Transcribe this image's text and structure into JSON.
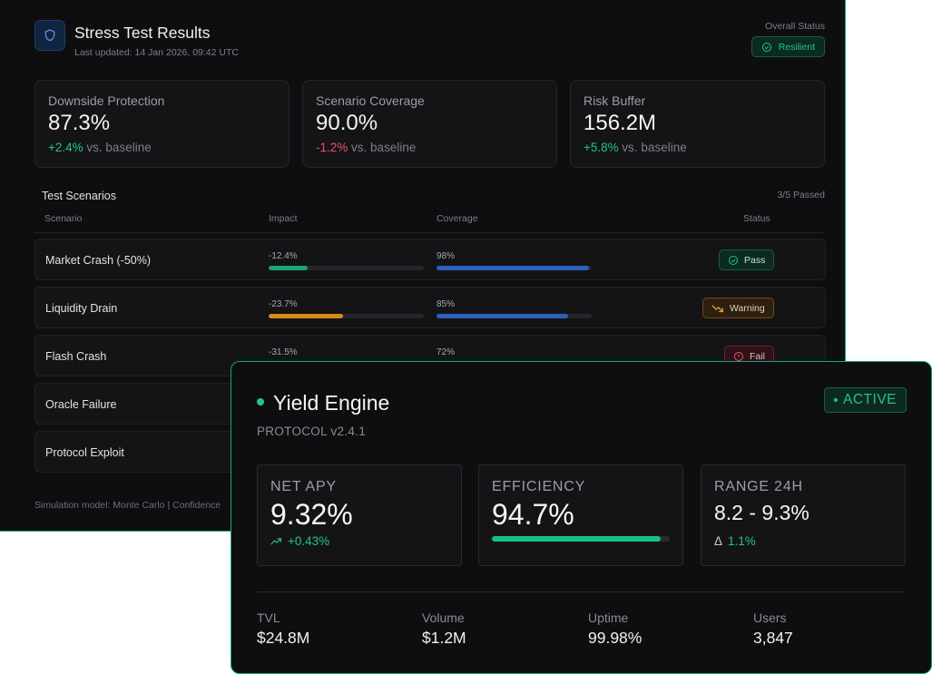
{
  "stress": {
    "title": "Stress Test Results",
    "updated": "Last updated: 14 Jan 2026, 09:42 UTC",
    "overall_label": "Overall Status",
    "overall_status": "Resilient",
    "cards": [
      {
        "label": "Downside Protection",
        "value": "87.3%",
        "change": "+2.4%",
        "change_suffix": "vs. baseline"
      },
      {
        "label": "Scenario Coverage",
        "value": "90.0%",
        "change": "-1.2%",
        "change_suffix": "vs. baseline"
      },
      {
        "label": "Risk Buffer",
        "value": "156.2M",
        "change": "+5.8%",
        "change_suffix": "vs. baseline"
      }
    ],
    "section_title": "Test Scenarios",
    "passed_count": "3/5 Passed",
    "columns": [
      "Scenario",
      "Impact",
      "Coverage",
      "Status"
    ],
    "rows": [
      {
        "name": "Market Crash (-50%)",
        "impact": "-12.4%",
        "coverage": "98%",
        "status": "Pass"
      },
      {
        "name": "Liquidity Drain",
        "impact": "-23.7%",
        "coverage": "85%",
        "status": "Warning"
      },
      {
        "name": "Flash Crash",
        "impact": "-31.5%",
        "coverage": "72%",
        "status": "Fail"
      },
      {
        "name": "Oracle Failure"
      },
      {
        "name": "Protocol Exploit"
      }
    ],
    "footnote": "Simulation model: Monte Carlo | Confidence"
  },
  "engine": {
    "title": "Yield Engine",
    "subtitle": "PROTOCOL v2.4.1",
    "badge": "ACTIVE",
    "metrics": {
      "apy_label": "NET APY",
      "apy_value": "9.32%",
      "apy_change": "+0.43%",
      "eff_label": "EFFICIENCY",
      "eff_value": "94.7%",
      "range_label": "RANGE 24H",
      "range_value": "8.2 - 9.3%",
      "range_delta_symbol": "Δ",
      "range_delta": "1.1%"
    },
    "footer": [
      {
        "label": "TVL",
        "value": "$24.8M"
      },
      {
        "label": "Volume",
        "value": "$1.2M"
      },
      {
        "label": "Uptime",
        "value": "99.98%"
      },
      {
        "label": "Users",
        "value": "3,847"
      }
    ]
  },
  "colors": {
    "accent": "#22c587",
    "negative": "#ef4f6a",
    "warning": "#d88a1c",
    "coverage": "#2e5fb8"
  }
}
